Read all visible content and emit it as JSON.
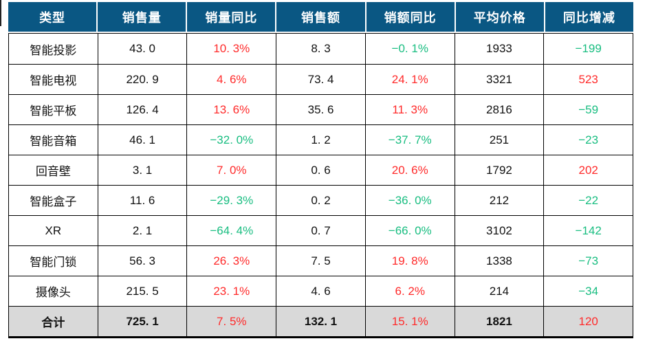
{
  "colors": {
    "header_bg": "#0A5783",
    "header_text": "#FFFFFF",
    "up_red": "#FF2A2A",
    "down_green": "#18BD80",
    "total_row_bg": "#D9D9D9",
    "grid_border": "#000000"
  },
  "table": {
    "headers": [
      "类型",
      "销售量",
      "销量同比",
      "销售额",
      "销额同比",
      "平均价格",
      "同比增减"
    ],
    "rows": [
      {
        "cells": [
          {
            "text": "智能投影",
            "color": "black"
          },
          {
            "text": "43. 0",
            "color": "black"
          },
          {
            "text": "10. 3%",
            "color": "red"
          },
          {
            "text": "8. 3",
            "color": "black"
          },
          {
            "text": "−0. 1%",
            "color": "green"
          },
          {
            "text": "1933",
            "color": "black"
          },
          {
            "text": "−199",
            "color": "green"
          }
        ]
      },
      {
        "cells": [
          {
            "text": "智能电视",
            "color": "black"
          },
          {
            "text": "220. 9",
            "color": "black"
          },
          {
            "text": "4. 6%",
            "color": "red"
          },
          {
            "text": "73. 4",
            "color": "black"
          },
          {
            "text": "24. 1%",
            "color": "red"
          },
          {
            "text": "3321",
            "color": "black"
          },
          {
            "text": "523",
            "color": "red"
          }
        ]
      },
      {
        "cells": [
          {
            "text": "智能平板",
            "color": "black"
          },
          {
            "text": "126. 4",
            "color": "black"
          },
          {
            "text": "13. 6%",
            "color": "red"
          },
          {
            "text": "35. 6",
            "color": "black"
          },
          {
            "text": "11. 3%",
            "color": "red"
          },
          {
            "text": "2816",
            "color": "black"
          },
          {
            "text": "−59",
            "color": "green"
          }
        ]
      },
      {
        "cells": [
          {
            "text": "智能音箱",
            "color": "black"
          },
          {
            "text": "46. 1",
            "color": "black"
          },
          {
            "text": "−32. 0%",
            "color": "green"
          },
          {
            "text": "1. 2",
            "color": "black"
          },
          {
            "text": "−37. 7%",
            "color": "green"
          },
          {
            "text": "251",
            "color": "black"
          },
          {
            "text": "−23",
            "color": "green"
          }
        ]
      },
      {
        "cells": [
          {
            "text": "回音壁",
            "color": "black"
          },
          {
            "text": "3. 1",
            "color": "black"
          },
          {
            "text": "7. 0%",
            "color": "red"
          },
          {
            "text": "0. 6",
            "color": "black"
          },
          {
            "text": "20. 6%",
            "color": "red"
          },
          {
            "text": "1792",
            "color": "black"
          },
          {
            "text": "202",
            "color": "red"
          }
        ]
      },
      {
        "cells": [
          {
            "text": "智能盒子",
            "color": "black"
          },
          {
            "text": "11. 6",
            "color": "black"
          },
          {
            "text": "−29. 3%",
            "color": "green"
          },
          {
            "text": "0. 2",
            "color": "black"
          },
          {
            "text": "−36. 0%",
            "color": "green"
          },
          {
            "text": "212",
            "color": "black"
          },
          {
            "text": "−22",
            "color": "green"
          }
        ]
      },
      {
        "cells": [
          {
            "text": "XR",
            "color": "black"
          },
          {
            "text": "2. 1",
            "color": "black"
          },
          {
            "text": "−64. 4%",
            "color": "green"
          },
          {
            "text": "0. 7",
            "color": "black"
          },
          {
            "text": "−66. 0%",
            "color": "green"
          },
          {
            "text": "3102",
            "color": "black"
          },
          {
            "text": "−142",
            "color": "green"
          }
        ]
      },
      {
        "cells": [
          {
            "text": "智能门锁",
            "color": "black"
          },
          {
            "text": "56. 3",
            "color": "black"
          },
          {
            "text": "26. 3%",
            "color": "red"
          },
          {
            "text": "7. 5",
            "color": "black"
          },
          {
            "text": "19. 8%",
            "color": "red"
          },
          {
            "text": "1338",
            "color": "black"
          },
          {
            "text": "−73",
            "color": "green"
          }
        ]
      },
      {
        "cells": [
          {
            "text": "摄像头",
            "color": "black"
          },
          {
            "text": "215. 5",
            "color": "black"
          },
          {
            "text": "23. 1%",
            "color": "red"
          },
          {
            "text": "4. 6",
            "color": "black"
          },
          {
            "text": "6. 2%",
            "color": "red"
          },
          {
            "text": "214",
            "color": "black"
          },
          {
            "text": "−34",
            "color": "green"
          }
        ]
      }
    ],
    "total_row": {
      "cells": [
        {
          "text": "合计",
          "color": "black",
          "bold": true
        },
        {
          "text": "725. 1",
          "color": "black",
          "bold": true
        },
        {
          "text": "7. 5%",
          "color": "red"
        },
        {
          "text": "132. 1",
          "color": "black",
          "bold": true
        },
        {
          "text": "15. 1%",
          "color": "red"
        },
        {
          "text": "1821",
          "color": "black",
          "bold": true
        },
        {
          "text": "120",
          "color": "red"
        }
      ]
    }
  },
  "chart_data": {
    "type": "table",
    "columns": [
      "类型",
      "销售量",
      "销量同比",
      "销售额",
      "销额同比",
      "平均价格",
      "同比增减"
    ],
    "rows": [
      [
        "智能投影",
        43.0,
        "10.3%",
        8.3,
        "-0.1%",
        1933,
        -199
      ],
      [
        "智能电视",
        220.9,
        "4.6%",
        73.4,
        "24.1%",
        3321,
        523
      ],
      [
        "智能平板",
        126.4,
        "13.6%",
        35.6,
        "11.3%",
        2816,
        -59
      ],
      [
        "智能音箱",
        46.1,
        "-32.0%",
        1.2,
        "-37.7%",
        251,
        -23
      ],
      [
        "回音壁",
        3.1,
        "7.0%",
        0.6,
        "20.6%",
        1792,
        202
      ],
      [
        "智能盒子",
        11.6,
        "-29.3%",
        0.2,
        "-36.0%",
        212,
        -22
      ],
      [
        "XR",
        2.1,
        "-64.4%",
        0.7,
        "-66.0%",
        3102,
        -142
      ],
      [
        "智能门锁",
        56.3,
        "26.3%",
        7.5,
        "19.8%",
        1338,
        -73
      ],
      [
        "摄像头",
        215.5,
        "23.1%",
        4.6,
        "6.2%",
        214,
        -34
      ],
      [
        "合计",
        725.1,
        "7.5%",
        132.1,
        "15.1%",
        1821,
        120
      ]
    ],
    "legend": "red text = year-over-year increase, green text = year-over-year decrease",
    "layout": "grid on, dark blue header row, gray total row, thick black bottom border"
  }
}
